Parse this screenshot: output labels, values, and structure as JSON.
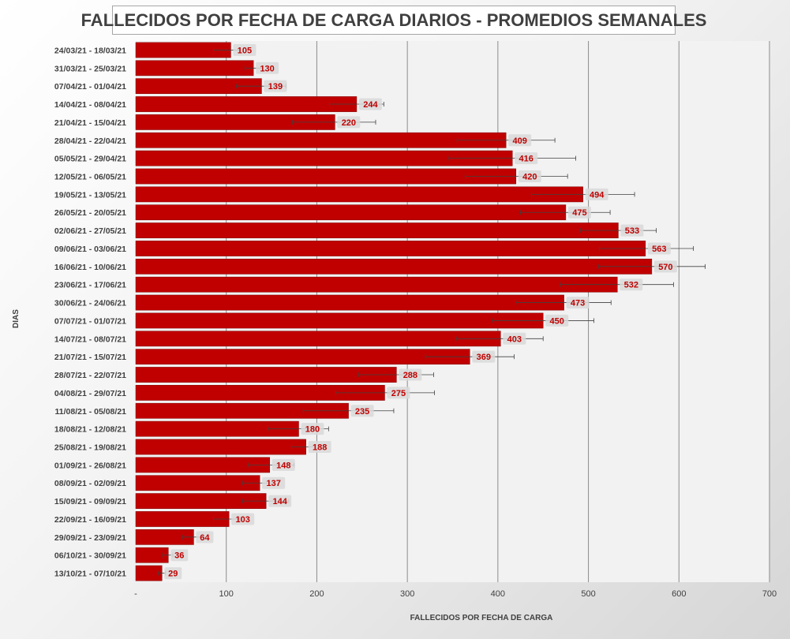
{
  "chart_data": {
    "type": "bar",
    "orientation": "horizontal",
    "title": "FALLECIDOS POR FECHA DE CARGA DIARIOS - PROMEDIOS SEMANALES",
    "xlabel": "FALLECIDOS POR FECHA DE CARGA",
    "ylabel": "DIAS",
    "xlim": [
      0,
      700
    ],
    "x_ticks": [
      "-",
      "100",
      "200",
      "300",
      "400",
      "500",
      "600",
      "700"
    ],
    "grid": "vertical",
    "bar_color": "#c00000",
    "label_color": "#c00000",
    "error_bars": true,
    "categories": [
      "24/03/21 - 18/03/21",
      "31/03/21 - 25/03/21",
      "07/04/21 - 01/04/21",
      "14/04/21 - 08/04/21",
      "21/04/21 - 15/04/21",
      "28/04/21 - 22/04/21",
      "05/05/21 - 29/04/21",
      "12/05/21 - 06/05/21",
      "19/05/21 - 13/05/21",
      "26/05/21 - 20/05/21",
      "02/06/21 - 27/05/21",
      "09/06/21 - 03/06/21",
      "16/06/21 - 10/06/21",
      "23/06/21 - 17/06/21",
      "30/06/21 - 24/06/21",
      "07/07/21 - 01/07/21",
      "14/07/21 - 08/07/21",
      "21/07/21 - 15/07/21",
      "28/07/21 - 22/07/21",
      "04/08/21 - 29/07/21",
      "11/08/21 - 05/08/21",
      "18/08/21 - 12/08/21",
      "25/08/21 - 19/08/21",
      "01/09/21 - 26/08/21",
      "08/09/21 - 02/09/21",
      "15/09/21 - 09/09/21",
      "22/09/21 - 16/09/21",
      "29/09/21 - 23/09/21",
      "06/10/21 - 30/09/21",
      "13/10/21 - 07/10/21"
    ],
    "values": [
      105,
      130,
      139,
      244,
      220,
      409,
      416,
      420,
      494,
      475,
      533,
      563,
      570,
      532,
      473,
      450,
      403,
      369,
      288,
      275,
      235,
      180,
      188,
      148,
      137,
      144,
      103,
      64,
      36,
      29
    ],
    "error_low": [
      86,
      121,
      111,
      214,
      173,
      355,
      346,
      364,
      437,
      425,
      491,
      512,
      511,
      469,
      420,
      394,
      354,
      320,
      246,
      221,
      185,
      146,
      172,
      124,
      118,
      118,
      86,
      52,
      30,
      25
    ],
    "error_high": [
      115,
      140,
      166,
      274,
      265,
      463,
      486,
      477,
      551,
      524,
      575,
      616,
      629,
      594,
      525,
      506,
      450,
      418,
      329,
      330,
      285,
      213,
      198,
      175,
      154,
      169,
      115,
      75,
      41,
      33
    ]
  }
}
